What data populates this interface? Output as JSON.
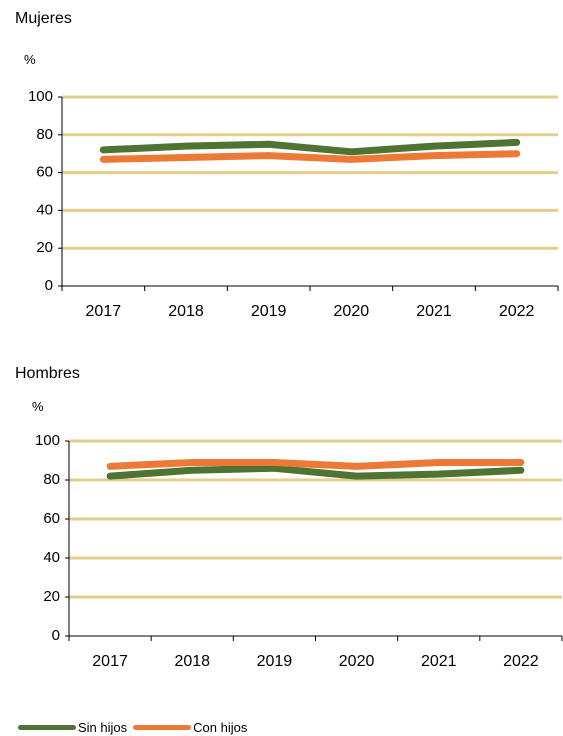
{
  "colors": {
    "grid": "#e3cf8a",
    "axis": "#000000",
    "sin_hijos": "#4f7332",
    "con_hijos": "#ec7a36"
  },
  "legend": [
    {
      "label": "Sin hijos",
      "color": "#4f7332"
    },
    {
      "label": "Con hijos",
      "color": "#ec7a36"
    }
  ],
  "chart_data": [
    {
      "type": "line",
      "title": "Mujeres",
      "ylabel": "%",
      "categories": [
        "2017",
        "2018",
        "2019",
        "2020",
        "2021",
        "2022"
      ],
      "ylim": [
        0,
        100
      ],
      "yticks": [
        0,
        20,
        40,
        60,
        80,
        100
      ],
      "grid": true,
      "legend_position": "bottom",
      "series": [
        {
          "name": "Sin hijos",
          "values": [
            72,
            74,
            75,
            71,
            74,
            76
          ]
        },
        {
          "name": "Con hijos",
          "values": [
            67,
            68,
            69,
            67,
            69,
            70
          ]
        }
      ]
    },
    {
      "type": "line",
      "title": "Hombres",
      "ylabel": "%",
      "categories": [
        "2017",
        "2018",
        "2019",
        "2020",
        "2021",
        "2022"
      ],
      "ylim": [
        0,
        100
      ],
      "yticks": [
        0,
        20,
        40,
        60,
        80,
        100
      ],
      "grid": true,
      "legend_position": "bottom",
      "series": [
        {
          "name": "Sin hijos",
          "values": [
            82,
            85,
            86,
            82,
            83,
            85
          ]
        },
        {
          "name": "Con hijos",
          "values": [
            87,
            89,
            89,
            87,
            89,
            89
          ]
        }
      ]
    }
  ]
}
